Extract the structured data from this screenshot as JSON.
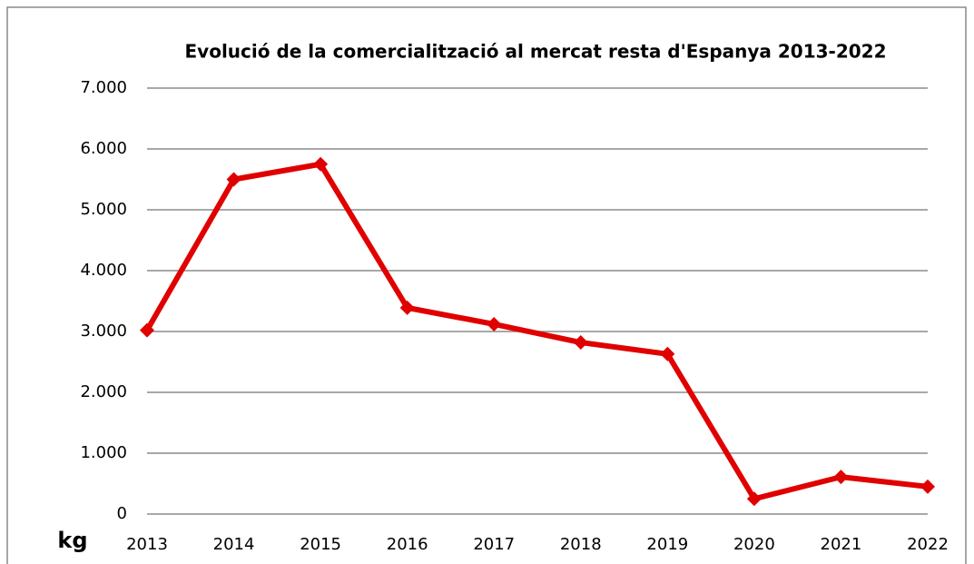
{
  "chart_data": {
    "type": "line",
    "title": "Evolució de la comercialització al mercat  resta d'Espanya 2013-2022",
    "y_label": "kg",
    "x": [
      2013,
      2014,
      2015,
      2016,
      2017,
      2018,
      2019,
      2020,
      2021,
      2022
    ],
    "xlim": [
      2013,
      2022
    ],
    "xticks": [
      2013,
      2014,
      2015,
      2016,
      2017,
      2018,
      2019,
      2020,
      2021,
      2022
    ],
    "series": [
      {
        "color": "#e00000",
        "values": [
          3020,
          5500,
          5750,
          3390,
          3120,
          2820,
          2630,
          250,
          610,
          450
        ]
      }
    ],
    "ylim": [
      0,
      7000
    ],
    "yticks": [
      0,
      {
        "value": 1000,
        "label": "1.000"
      },
      {
        "value": 2000,
        "label": "2.000"
      },
      {
        "value": 3000,
        "label": "3.000"
      },
      {
        "value": 4000,
        "label": "4.000"
      },
      {
        "value": 5000,
        "label": "5.000"
      },
      {
        "value": 6000,
        "label": "6.000"
      },
      {
        "value": 7000,
        "label": "7.000"
      }
    ],
    "grid": true
  }
}
